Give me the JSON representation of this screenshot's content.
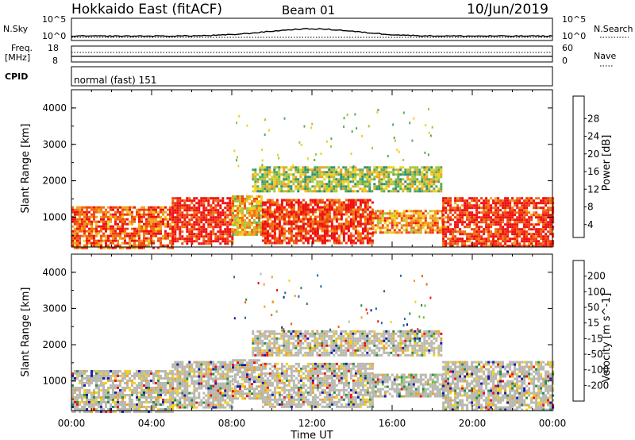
{
  "header": {
    "station": "Hokkaido East (fitACF)",
    "beam": "Beam 01",
    "date": "10/Jun/2019"
  },
  "strips": {
    "nsky_label": "N.Sky",
    "nsearch_label": "N.Search",
    "freq_label_1": "Freq.",
    "freq_label_2": "[MHz]",
    "nave_label": "Nave",
    "cpid_label": "CPID",
    "cpid_value": "normal (fast) 151",
    "log_ticks": [
      "10^5",
      "10^0"
    ],
    "freq_ticks": [
      18,
      8
    ],
    "nave_ticks": [
      60,
      0
    ]
  },
  "chart_data": [
    {
      "type": "heatmap",
      "name": "power",
      "xlabel": "Time UT",
      "ylabel": "Slant Range [km]",
      "x_ticks": [
        "00:00",
        "04:00",
        "08:00",
        "12:00",
        "16:00",
        "20:00",
        "00:00"
      ],
      "y_ticks": [
        1000,
        2000,
        3000,
        4000
      ],
      "ylim": [
        180,
        4500
      ],
      "xlim_hours": [
        0,
        24
      ],
      "colorbar": {
        "label": "Power [dB]",
        "ticks": [
          4,
          8,
          12,
          16,
          20,
          24,
          28
        ],
        "colors": [
          "#1010ff",
          "#1a4fa0",
          "#2f8f6f",
          "#5aa85a",
          "#a6c640",
          "#f0d020",
          "#f0a020",
          "#f07010",
          "#f04010",
          "#ee1010"
        ]
      },
      "bands": [
        {
          "t0": 0,
          "t1": 5,
          "r0": 180,
          "r1": 1300,
          "level": 0.8
        },
        {
          "t0": 5,
          "t1": 8,
          "r0": 300,
          "r1": 1550,
          "level": 0.95
        },
        {
          "t0": 8,
          "t1": 9.5,
          "r0": 500,
          "r1": 1600,
          "level": 0.6
        },
        {
          "t0": 9.5,
          "t1": 15,
          "r0": 300,
          "r1": 1500,
          "level": 0.9
        },
        {
          "t0": 9,
          "t1": 18.5,
          "r0": 1700,
          "r1": 2400,
          "level": 0.45
        },
        {
          "t0": 15,
          "t1": 18.5,
          "r0": 600,
          "r1": 1200,
          "level": 0.7
        },
        {
          "t0": 18.5,
          "t1": 24,
          "r0": 180,
          "r1": 1550,
          "level": 0.9
        }
      ]
    },
    {
      "type": "heatmap",
      "name": "velocity",
      "xlabel": "Time UT",
      "ylabel": "Slant Range [km]",
      "x_ticks": [
        "00:00",
        "04:00",
        "08:00",
        "12:00",
        "16:00",
        "20:00",
        "00:00"
      ],
      "y_ticks": [
        1000,
        2000,
        3000,
        4000
      ],
      "ylim": [
        180,
        4500
      ],
      "xlim_hours": [
        0,
        24
      ],
      "colorbar": {
        "label": "Velocity [m s^-1]",
        "ticks": [
          200,
          100,
          50,
          15,
          -15,
          -50,
          -100,
          -200
        ],
        "colors": [
          "#1a1aa8",
          "#2a6aa0",
          "#2a8a4a",
          "#6ac040",
          "#b8b8b0",
          "#f0d020",
          "#f0a020",
          "#f06010",
          "#ee1010"
        ]
      },
      "bands": [
        {
          "t0": 0,
          "t1": 5,
          "r0": 180,
          "r1": 1300,
          "level": 0.5
        },
        {
          "t0": 5,
          "t1": 8,
          "r0": 300,
          "r1": 1550,
          "level": 0.5
        },
        {
          "t0": 8,
          "t1": 9.5,
          "r0": 500,
          "r1": 1600,
          "level": 0.5
        },
        {
          "t0": 9.5,
          "t1": 15,
          "r0": 300,
          "r1": 1500,
          "level": 0.5
        },
        {
          "t0": 9,
          "t1": 18.5,
          "r0": 1700,
          "r1": 2400,
          "level": 0.5
        },
        {
          "t0": 15,
          "t1": 18.5,
          "r0": 600,
          "r1": 1200,
          "level": 0.7
        },
        {
          "t0": 18.5,
          "t1": 24,
          "r0": 180,
          "r1": 1550,
          "level": 0.5
        }
      ]
    }
  ]
}
